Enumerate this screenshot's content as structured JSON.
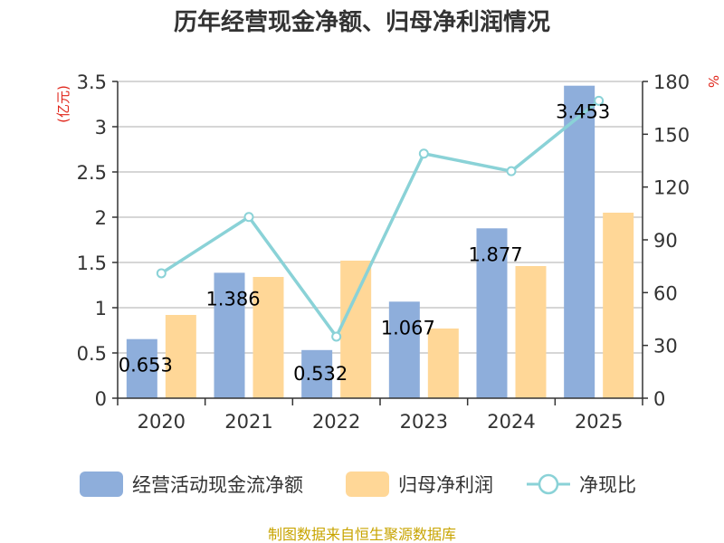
{
  "chart_data": {
    "type": "bar",
    "title": "历年经营现金净额、归母净利润情况",
    "categories": [
      "2020",
      "2021",
      "2022",
      "2023",
      "2024",
      "2025"
    ],
    "series": [
      {
        "name": "经营活动现金流净额",
        "kind": "bar",
        "axis": "left",
        "color": "#8eaedb",
        "values": [
          0.653,
          1.386,
          0.532,
          1.067,
          1.877,
          3.453
        ],
        "data_labels": [
          "0.653",
          "1.386",
          "0.532",
          "1.067",
          "1.877",
          "3.453"
        ]
      },
      {
        "name": "归母净利润",
        "kind": "bar",
        "axis": "left",
        "color": "#ffd797",
        "values": [
          0.92,
          1.34,
          1.52,
          0.77,
          1.46,
          2.05
        ]
      },
      {
        "name": "净现比",
        "kind": "line",
        "axis": "right",
        "color": "#8ad2d7",
        "values": [
          71,
          103,
          35,
          139,
          129,
          169
        ]
      }
    ],
    "y_left": {
      "unit": "(亿元)",
      "min": 0,
      "max": 3.5,
      "ticks": [
        "0",
        "0.5",
        "1",
        "1.5",
        "2",
        "2.5",
        "3",
        "3.5"
      ]
    },
    "y_right": {
      "unit": "%",
      "min": 0,
      "max": 180,
      "ticks": [
        "0",
        "30",
        "60",
        "90",
        "120",
        "150",
        "180"
      ]
    },
    "grid": true,
    "legend_position": "bottom"
  },
  "source": "制图数据来自恒生聚源数据库"
}
